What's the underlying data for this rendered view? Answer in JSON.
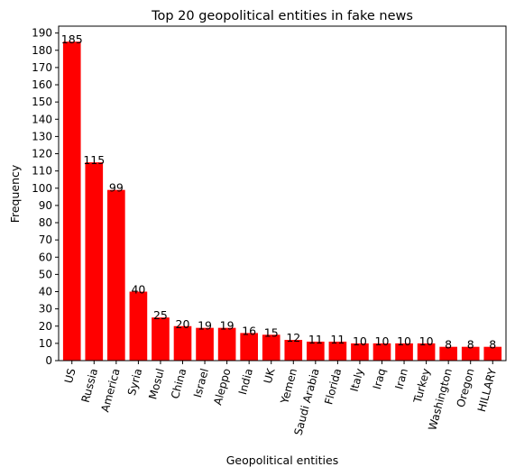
{
  "chart_data": {
    "type": "bar",
    "title": "Top 20 geopolitical entities in fake news",
    "xlabel": "Geopolitical entities",
    "ylabel": "Frequency",
    "categories": [
      "US",
      "Russia",
      "America",
      "Syria",
      "Mosul",
      "China",
      "Israel",
      "Aleppo",
      "India",
      "UK",
      "Yemen",
      "Saudi Arabia",
      "Florida",
      "Italy",
      "Iraq",
      "Iran",
      "Turkey",
      "Washington",
      "Oregon",
      "HILLARY"
    ],
    "values": [
      185,
      115,
      99,
      40,
      25,
      20,
      19,
      19,
      16,
      15,
      12,
      11,
      11,
      10,
      10,
      10,
      10,
      8,
      8,
      8
    ],
    "ylim": [
      0,
      194
    ],
    "yticks": [
      0,
      10,
      20,
      30,
      40,
      50,
      60,
      70,
      80,
      90,
      100,
      110,
      120,
      130,
      140,
      150,
      160,
      170,
      180,
      190
    ],
    "bar_color": "#ff0000",
    "grid": false,
    "legend": "none"
  }
}
